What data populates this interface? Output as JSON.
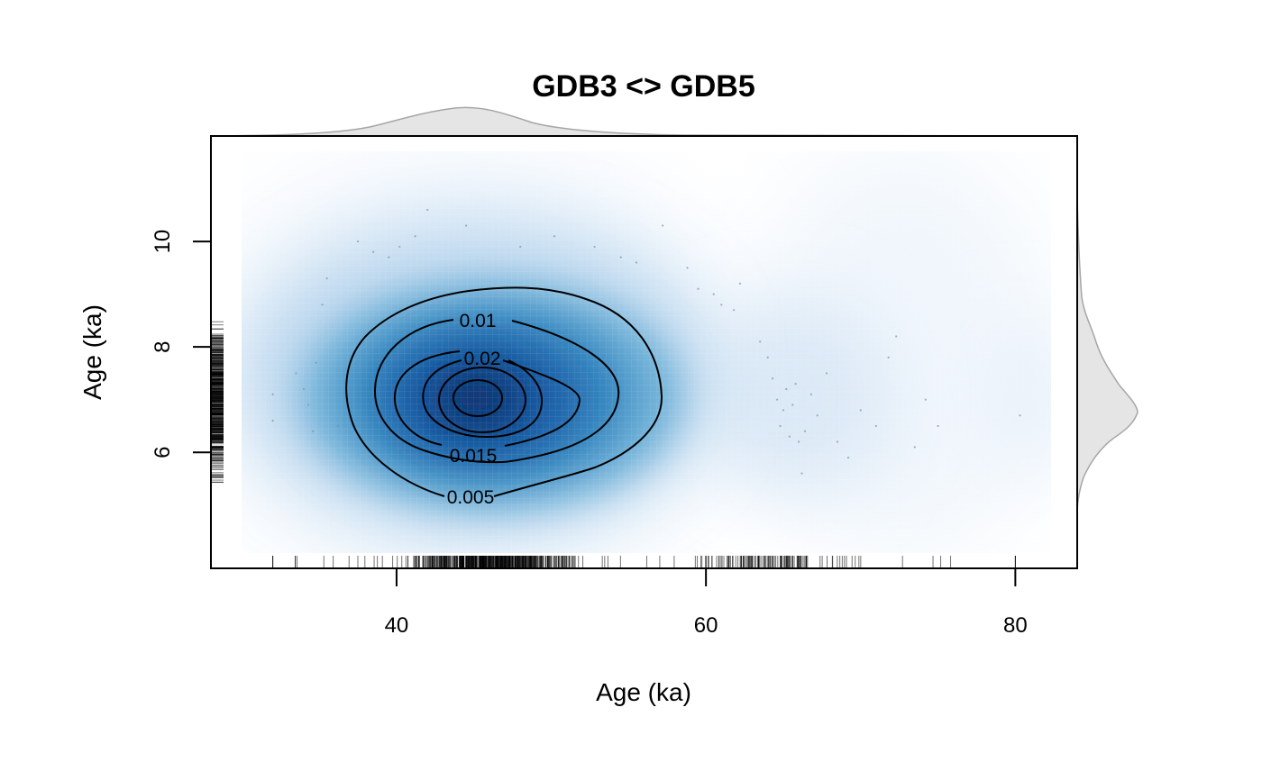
{
  "chart_data": {
    "type": "heatmap",
    "subtype": "2d-kernel-density",
    "title": "GDB3 <> GDB5",
    "xlabel": "Age (ka)",
    "ylabel": "Age (ka)",
    "xlim": [
      28,
      84
    ],
    "ylim": [
      3.8,
      12.0
    ],
    "x_ticks": [
      40,
      60,
      80
    ],
    "y_ticks": [
      6,
      8,
      10
    ],
    "color_scale": [
      "#f7fbff",
      "#c6dbef",
      "#6baed6",
      "#2171b5",
      "#08306b"
    ],
    "marginals": {
      "top": "density of x",
      "right": "density of y",
      "color": "#e5e5e5",
      "stroke": "#a6a6a6"
    },
    "rugs": {
      "bottom": true,
      "left": true
    },
    "density_peak": {
      "x": 46.3,
      "y": 7.0
    },
    "contours": [
      {
        "level": 0.005,
        "label": "0.005"
      },
      {
        "level": 0.01,
        "label": "0.01"
      },
      {
        "level": 0.015,
        "label": "0.015"
      },
      {
        "level": 0.02,
        "label": "0.02"
      }
    ],
    "scatter_points": [
      [
        32.0,
        7.1
      ],
      [
        32.0,
        6.6
      ],
      [
        33.5,
        7.5
      ],
      [
        34.0,
        7.2
      ],
      [
        34.3,
        6.9
      ],
      [
        34.6,
        6.4
      ],
      [
        34.8,
        7.7
      ],
      [
        35.2,
        8.8
      ],
      [
        35.5,
        9.3
      ],
      [
        36.2,
        6.5
      ],
      [
        37.5,
        10.0
      ],
      [
        38.5,
        9.8
      ],
      [
        39.5,
        9.7
      ],
      [
        40.2,
        9.9
      ],
      [
        41.2,
        10.1
      ],
      [
        42.0,
        10.6
      ],
      [
        44.5,
        10.3
      ],
      [
        48.0,
        9.9
      ],
      [
        50.2,
        10.1
      ],
      [
        52.8,
        9.9
      ],
      [
        54.5,
        9.7
      ],
      [
        55.5,
        9.6
      ],
      [
        57.2,
        10.3
      ],
      [
        58.8,
        9.5
      ],
      [
        59.5,
        9.1
      ],
      [
        60.5,
        9.0
      ],
      [
        61.0,
        8.8
      ],
      [
        61.8,
        8.7
      ],
      [
        62.2,
        9.2
      ],
      [
        63.5,
        8.1
      ],
      [
        64.0,
        7.8
      ],
      [
        64.3,
        7.4
      ],
      [
        64.6,
        7.0
      ],
      [
        64.8,
        6.5
      ],
      [
        65.0,
        6.8
      ],
      [
        65.2,
        7.2
      ],
      [
        65.4,
        6.3
      ],
      [
        65.6,
        6.9
      ],
      [
        65.8,
        7.3
      ],
      [
        66.0,
        6.2
      ],
      [
        66.2,
        5.6
      ],
      [
        66.4,
        6.4
      ],
      [
        66.8,
        7.1
      ],
      [
        67.2,
        6.7
      ],
      [
        67.8,
        7.5
      ],
      [
        68.5,
        6.2
      ],
      [
        69.2,
        5.9
      ],
      [
        70.0,
        6.8
      ],
      [
        71.0,
        6.5
      ],
      [
        71.8,
        7.8
      ],
      [
        72.3,
        8.2
      ],
      [
        73.5,
        6.1
      ],
      [
        74.2,
        7.0
      ],
      [
        75.0,
        6.5
      ],
      [
        80.3,
        6.7
      ]
    ]
  }
}
